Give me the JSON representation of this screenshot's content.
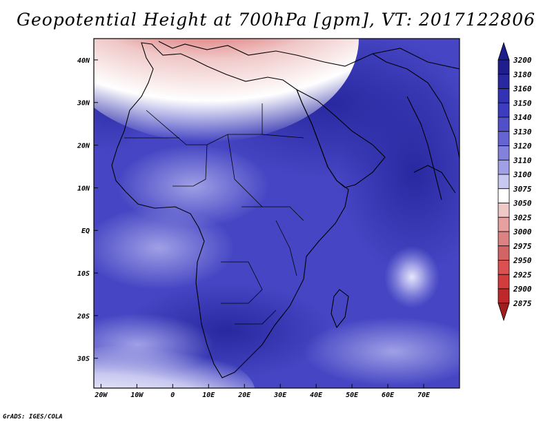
{
  "title": "Geopotential Height at 700hPa [gpm], VT: 2017122806",
  "credit": "GrADS: IGES/COLA",
  "map": {
    "lon_range": [
      -22,
      80
    ],
    "lat_range": [
      -37,
      45
    ],
    "lon_ticks": [
      {
        "lon": -20,
        "label": "20W"
      },
      {
        "lon": -10,
        "label": "10W"
      },
      {
        "lon": 0,
        "label": "0"
      },
      {
        "lon": 10,
        "label": "10E"
      },
      {
        "lon": 20,
        "label": "20E"
      },
      {
        "lon": 30,
        "label": "30E"
      },
      {
        "lon": 40,
        "label": "40E"
      },
      {
        "lon": 50,
        "label": "50E"
      },
      {
        "lon": 60,
        "label": "60E"
      },
      {
        "lon": 70,
        "label": "70E"
      }
    ],
    "lat_ticks": [
      {
        "lat": 40,
        "label": "40N"
      },
      {
        "lat": 30,
        "label": "30N"
      },
      {
        "lat": 20,
        "label": "20N"
      },
      {
        "lat": 10,
        "label": "10N"
      },
      {
        "lat": 0,
        "label": "EQ"
      },
      {
        "lat": -10,
        "label": "10S"
      },
      {
        "lat": -20,
        "label": "20S"
      },
      {
        "lat": -30,
        "label": "30S"
      }
    ]
  },
  "colorbar": {
    "levels": [
      "3200",
      "3180",
      "3160",
      "3150",
      "3140",
      "3130",
      "3120",
      "3110",
      "3100",
      "3075",
      "3050",
      "3025",
      "3000",
      "2975",
      "2950",
      "2925",
      "2900",
      "2875"
    ],
    "colors": [
      "#1e1e8c",
      "#2828a0",
      "#3232b4",
      "#3c3cc0",
      "#5050c8",
      "#6464d2",
      "#8282dc",
      "#a0a0e6",
      "#c8c8f0",
      "#ffffff",
      "#f0c8c8",
      "#e6a0a0",
      "#dc8282",
      "#d26464",
      "#dc5050",
      "#d23c3c",
      "#be2828",
      "#a01e1e"
    ]
  }
}
